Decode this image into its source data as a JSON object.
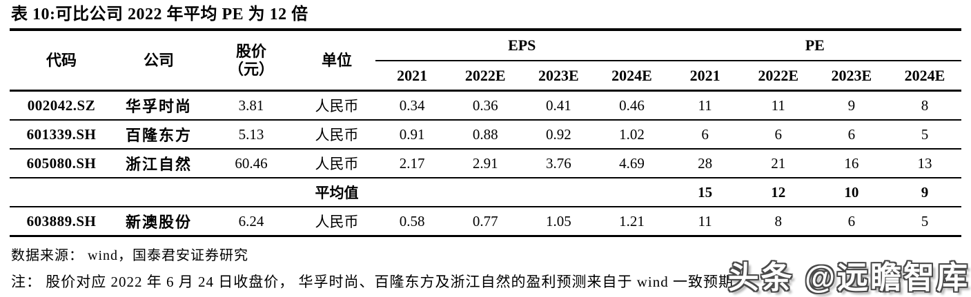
{
  "title": "表 10:可比公司 2022 年平均 PE 为 12 倍",
  "table": {
    "headers": {
      "code": "代码",
      "company": "公司",
      "price_line1": "股价",
      "price_line2": "（元）",
      "unit": "单位",
      "eps_group": "EPS",
      "pe_group": "PE",
      "eps_years": [
        "2021",
        "2022E",
        "2023E",
        "2024E"
      ],
      "pe_years": [
        "2021",
        "2022E",
        "2023E",
        "2024E"
      ]
    },
    "rows": [
      {
        "code": "002042.SZ",
        "company": "华孚时尚",
        "price": "3.81",
        "unit": "人民币",
        "eps": [
          "0.34",
          "0.36",
          "0.41",
          "0.46"
        ],
        "pe": [
          "11",
          "11",
          "9",
          "8"
        ],
        "bold": false
      },
      {
        "code": "601339.SH",
        "company": "百隆东方",
        "price": "5.13",
        "unit": "人民币",
        "eps": [
          "0.91",
          "0.88",
          "0.92",
          "1.02"
        ],
        "pe": [
          "6",
          "6",
          "6",
          "5"
        ],
        "bold": false
      },
      {
        "code": "605080.SH",
        "company": "浙江自然",
        "price": "60.46",
        "unit": "人民币",
        "eps": [
          "2.17",
          "2.91",
          "3.76",
          "4.69"
        ],
        "pe": [
          "28",
          "21",
          "16",
          "13"
        ],
        "bold": false
      },
      {
        "code": "",
        "company": "",
        "price": "",
        "unit": "平均值",
        "eps": [
          "",
          "",
          "",
          ""
        ],
        "pe": [
          "15",
          "12",
          "10",
          "9"
        ],
        "bold": true
      },
      {
        "code": "603889.SH",
        "company": "新澳股份",
        "price": "6.24",
        "unit": "人民币",
        "eps": [
          "0.58",
          "0.77",
          "1.05",
          "1.21"
        ],
        "pe": [
          "11",
          "8",
          "6",
          "5"
        ],
        "bold": false
      }
    ]
  },
  "footer": {
    "source": "数据来源： wind，国泰君安证券研究",
    "note": "注： 股价对应 2022 年 6 月 24 日收盘价， 华孚时尚、百隆东方及浙江自然的盈利预测来自于 wind 一致预期"
  },
  "watermark": "头条 @远瞻智库",
  "colors": {
    "text": "#000000",
    "line": "#000000",
    "background": "#ffffff",
    "watermark_outline": "#4a4a4a",
    "watermark_fill": "#ffffff"
  }
}
